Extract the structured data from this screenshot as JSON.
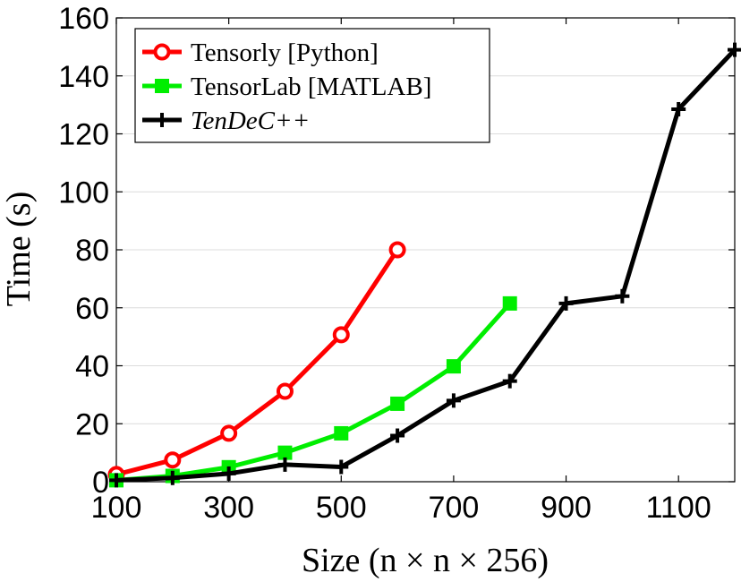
{
  "chart_data": {
    "type": "line",
    "xlabel": "Size (n × n × 256)",
    "ylabel": "Time (s)",
    "xlim": [
      100,
      1200
    ],
    "ylim": [
      0,
      160
    ],
    "xticks": [
      100,
      300,
      500,
      700,
      900,
      1100
    ],
    "yticks": [
      0,
      20,
      40,
      60,
      80,
      100,
      120,
      140,
      160
    ],
    "grid": "horizontal",
    "legend_position": "top-left",
    "series": [
      {
        "name": "Tensorly [Python]",
        "color": "#ff0000",
        "marker": "circle",
        "x": [
          100,
          200,
          300,
          400,
          500,
          600
        ],
        "y": [
          2.5,
          7.5,
          16.7,
          31.2,
          50.7,
          80.0
        ]
      },
      {
        "name": "TensorLab [MATLAB]",
        "color": "#00ee00",
        "marker": "square",
        "x": [
          100,
          200,
          300,
          400,
          500,
          600,
          700,
          800
        ],
        "y": [
          0.5,
          2.0,
          5.0,
          10.0,
          16.7,
          26.9,
          39.8,
          61.5
        ]
      },
      {
        "name": "TenDeC++",
        "color": "#000000",
        "marker": "plus",
        "italic": true,
        "x": [
          100,
          200,
          300,
          400,
          500,
          600,
          700,
          800,
          900,
          1000,
          1100,
          1200
        ],
        "y": [
          0.5,
          1.3,
          2.8,
          5.9,
          5.1,
          15.9,
          28.0,
          34.7,
          61.5,
          64.0,
          128.5,
          149.0
        ]
      }
    ]
  }
}
